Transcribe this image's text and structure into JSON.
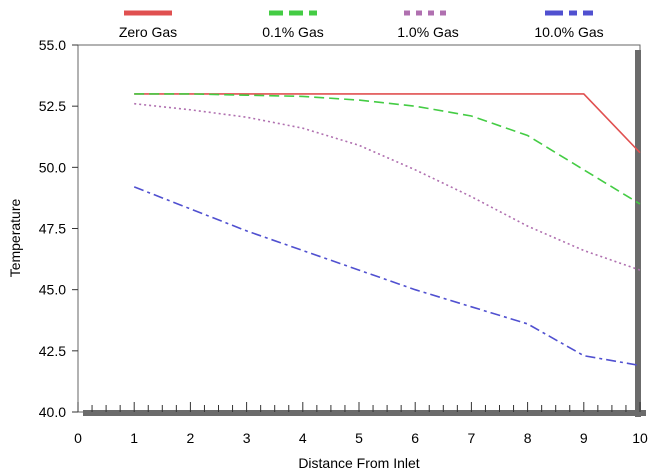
{
  "chart_data": {
    "type": "line",
    "xlabel": "Distance From Inlet",
    "ylabel": "Temperature",
    "xlim": [
      0,
      10
    ],
    "ylim": [
      40.0,
      55.0
    ],
    "x_ticks": [
      "0",
      "1",
      "2",
      "3",
      "4",
      "5",
      "6",
      "7",
      "8",
      "9",
      "10"
    ],
    "y_ticks": [
      "55.0",
      "52.5",
      "50.0",
      "47.5",
      "45.0",
      "42.5",
      "40.0"
    ],
    "legend_position": "top",
    "grid": false,
    "series": [
      {
        "name": "Zero Gas",
        "color": "#e05050",
        "dash": "solid",
        "x": [
          1,
          2,
          3,
          4,
          5,
          6,
          7,
          8,
          9,
          10
        ],
        "y": [
          53.0,
          53.0,
          53.0,
          53.0,
          53.0,
          53.0,
          53.0,
          53.0,
          53.0,
          50.6
        ]
      },
      {
        "name": "0.1% Gas",
        "color": "#44cc44",
        "dash": "dashed",
        "x": [
          1,
          2,
          3,
          4,
          5,
          6,
          7,
          8,
          9,
          10
        ],
        "y": [
          53.0,
          53.0,
          52.95,
          52.9,
          52.75,
          52.5,
          52.1,
          51.3,
          49.9,
          48.5
        ]
      },
      {
        "name": "1.0% Gas",
        "color": "#b070b0",
        "dash": "dotted",
        "x": [
          1,
          2,
          3,
          4,
          5,
          6,
          7,
          8,
          9,
          10
        ],
        "y": [
          52.6,
          52.35,
          52.05,
          51.6,
          50.9,
          49.9,
          48.8,
          47.6,
          46.6,
          45.8
        ]
      },
      {
        "name": "10.0% Gas",
        "color": "#5050d0",
        "dash": "dashdot",
        "x": [
          1,
          2,
          3,
          4,
          5,
          6,
          7,
          8,
          9,
          10
        ],
        "y": [
          49.2,
          48.3,
          47.4,
          46.6,
          45.8,
          45.0,
          44.3,
          43.6,
          42.3,
          41.9
        ]
      }
    ]
  }
}
